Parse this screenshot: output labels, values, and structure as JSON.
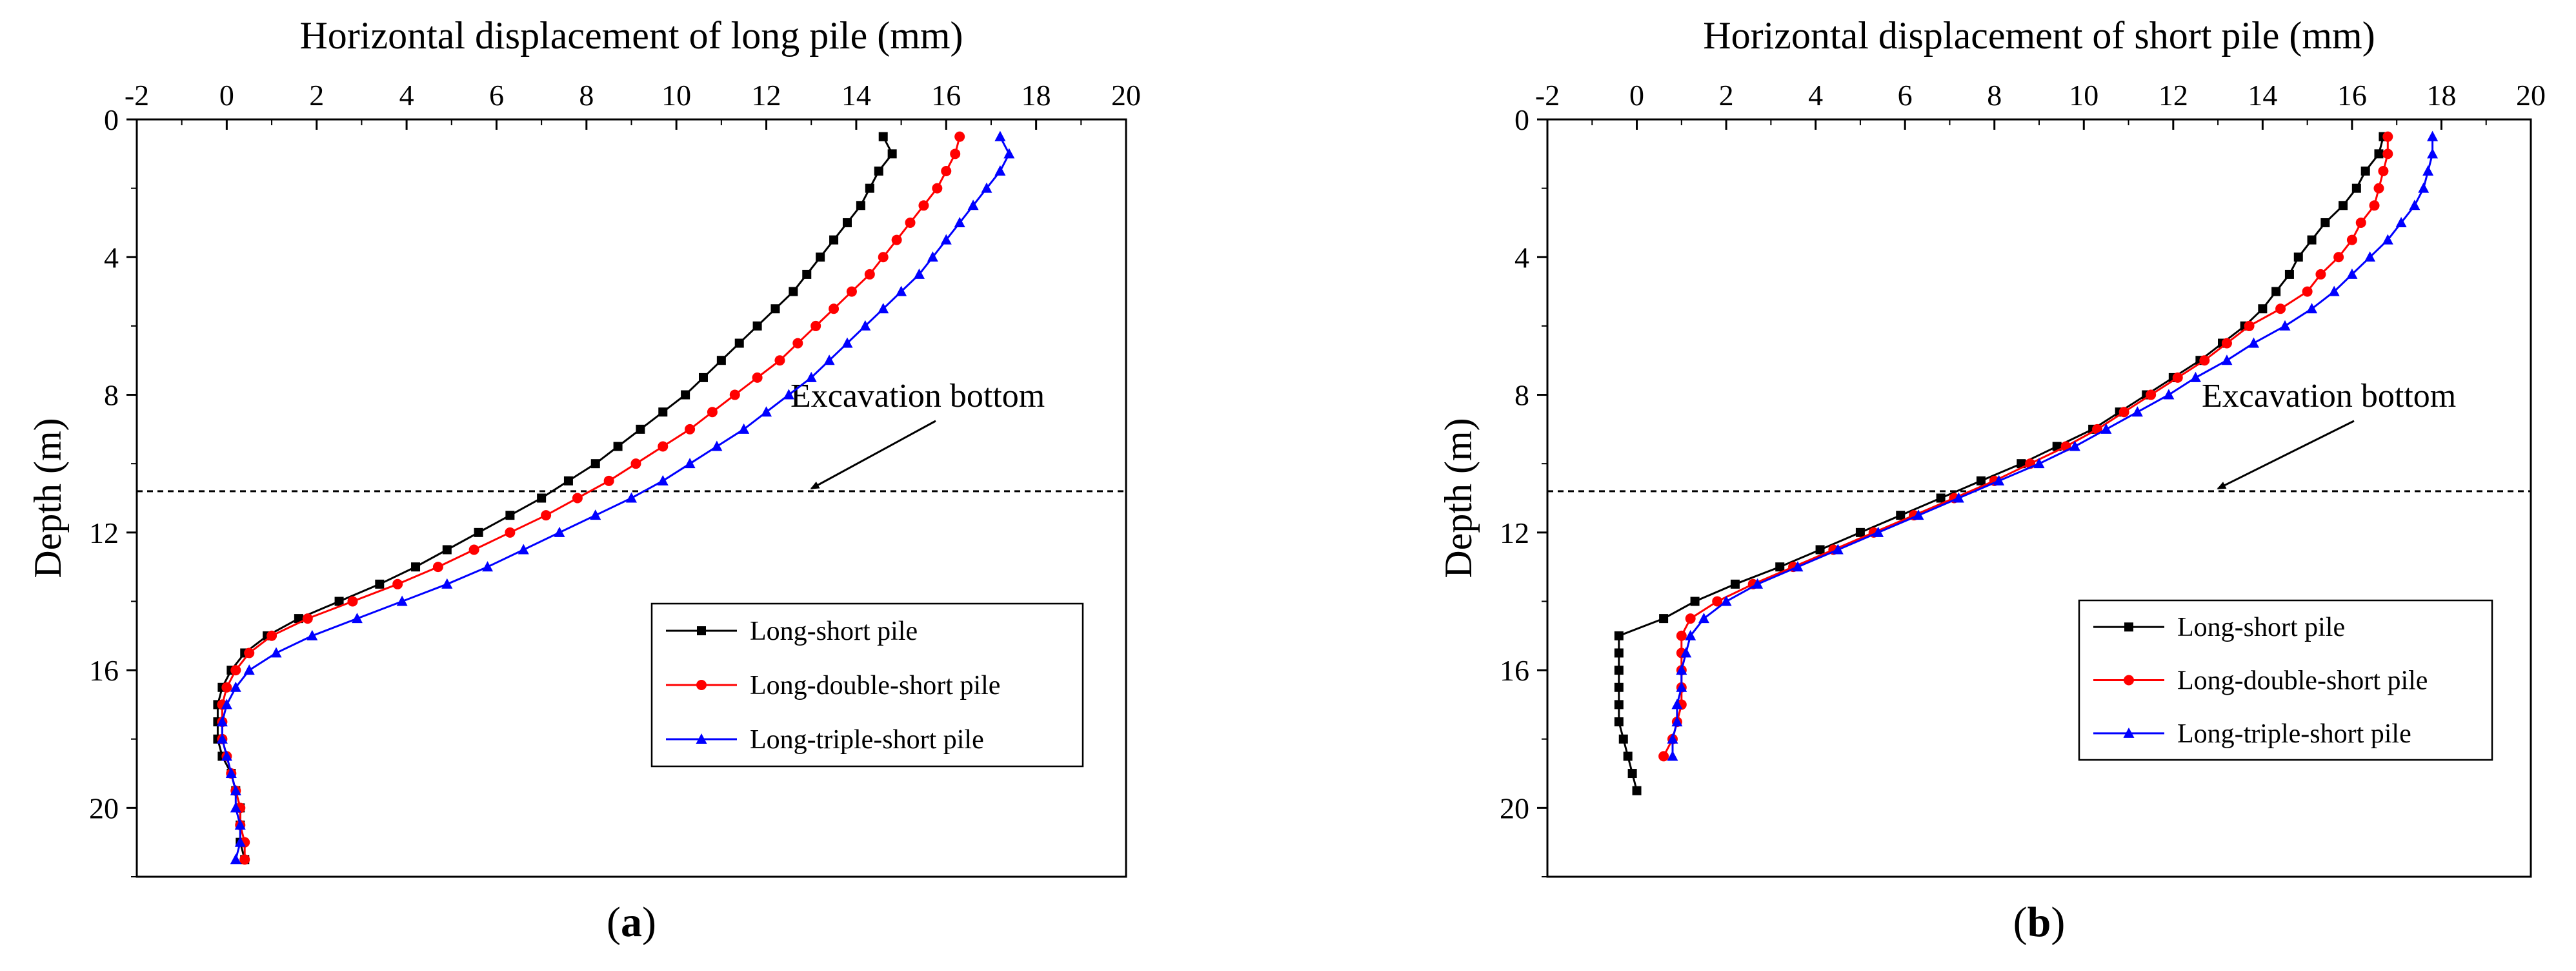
{
  "colors": {
    "Long-short pile": "#000000",
    "Long-double-short pile": "#ff0000",
    "Long-triple-short pile": "#0000ff"
  },
  "chart_data": [
    {
      "type": "line",
      "panel_label": "a",
      "xlabel": "Horizontal displacement of long pile (mm)",
      "ylabel": "Depth (m)",
      "xlim": [
        -2,
        20
      ],
      "ylim": [
        22,
        0
      ],
      "xticks": [
        -2,
        0,
        2,
        4,
        6,
        8,
        10,
        12,
        14,
        16,
        18,
        20
      ],
      "yticks": [
        0,
        4,
        8,
        12,
        16,
        20
      ],
      "legend_position": "bottom-right",
      "annotation": {
        "text": "Excavation bottom",
        "line_depth": 10.8,
        "arrow_to": [
          13,
          10.8
        ]
      },
      "series": [
        {
          "name": "Long-short pile",
          "marker": "square",
          "points": [
            [
              14.6,
              0.5
            ],
            [
              14.8,
              1
            ],
            [
              14.5,
              1.5
            ],
            [
              14.3,
              2
            ],
            [
              14.1,
              2.5
            ],
            [
              13.8,
              3
            ],
            [
              13.5,
              3.5
            ],
            [
              13.2,
              4
            ],
            [
              12.9,
              4.5
            ],
            [
              12.6,
              5
            ],
            [
              12.2,
              5.5
            ],
            [
              11.8,
              6
            ],
            [
              11.4,
              6.5
            ],
            [
              11,
              7
            ],
            [
              10.6,
              7.5
            ],
            [
              10.2,
              8
            ],
            [
              9.7,
              8.5
            ],
            [
              9.2,
              9
            ],
            [
              8.7,
              9.5
            ],
            [
              8.2,
              10
            ],
            [
              7.6,
              10.5
            ],
            [
              7,
              11
            ],
            [
              6.3,
              11.5
            ],
            [
              5.6,
              12
            ],
            [
              4.9,
              12.5
            ],
            [
              4.2,
              13
            ],
            [
              3.4,
              13.5
            ],
            [
              2.5,
              14
            ],
            [
              1.6,
              14.5
            ],
            [
              0.9,
              15
            ],
            [
              0.4,
              15.5
            ],
            [
              0.1,
              16
            ],
            [
              -0.1,
              16.5
            ],
            [
              -0.2,
              17
            ],
            [
              -0.2,
              17.5
            ],
            [
              -0.2,
              18
            ],
            [
              -0.1,
              18.5
            ],
            [
              0.1,
              19
            ],
            [
              0.2,
              19.5
            ],
            [
              0.3,
              20
            ],
            [
              0.3,
              20.5
            ],
            [
              0.3,
              21
            ],
            [
              0.4,
              21.5
            ]
          ]
        },
        {
          "name": "Long-double-short pile",
          "marker": "circle",
          "points": [
            [
              16.3,
              0.5
            ],
            [
              16.2,
              1
            ],
            [
              16,
              1.5
            ],
            [
              15.8,
              2
            ],
            [
              15.5,
              2.5
            ],
            [
              15.2,
              3
            ],
            [
              14.9,
              3.5
            ],
            [
              14.6,
              4
            ],
            [
              14.3,
              4.5
            ],
            [
              13.9,
              5
            ],
            [
              13.5,
              5.5
            ],
            [
              13.1,
              6
            ],
            [
              12.7,
              6.5
            ],
            [
              12.3,
              7
            ],
            [
              11.8,
              7.5
            ],
            [
              11.3,
              8
            ],
            [
              10.8,
              8.5
            ],
            [
              10.3,
              9
            ],
            [
              9.7,
              9.5
            ],
            [
              9.1,
              10
            ],
            [
              8.5,
              10.5
            ],
            [
              7.8,
              11
            ],
            [
              7.1,
              11.5
            ],
            [
              6.3,
              12
            ],
            [
              5.5,
              12.5
            ],
            [
              4.7,
              13
            ],
            [
              3.8,
              13.5
            ],
            [
              2.8,
              14
            ],
            [
              1.8,
              14.5
            ],
            [
              1,
              15
            ],
            [
              0.5,
              15.5
            ],
            [
              0.2,
              16
            ],
            [
              0,
              16.5
            ],
            [
              -0.1,
              17
            ],
            [
              -0.1,
              17.5
            ],
            [
              -0.1,
              18
            ],
            [
              0,
              18.5
            ],
            [
              0.1,
              19
            ],
            [
              0.2,
              19.5
            ],
            [
              0.3,
              20
            ],
            [
              0.3,
              20.5
            ],
            [
              0.4,
              21
            ],
            [
              0.4,
              21.5
            ]
          ]
        },
        {
          "name": "Long-triple-short pile",
          "marker": "triangle",
          "points": [
            [
              17.2,
              0.5
            ],
            [
              17.4,
              1
            ],
            [
              17.2,
              1.5
            ],
            [
              16.9,
              2
            ],
            [
              16.6,
              2.5
            ],
            [
              16.3,
              3
            ],
            [
              16,
              3.5
            ],
            [
              15.7,
              4
            ],
            [
              15.4,
              4.5
            ],
            [
              15,
              5
            ],
            [
              14.6,
              5.5
            ],
            [
              14.2,
              6
            ],
            [
              13.8,
              6.5
            ],
            [
              13.4,
              7
            ],
            [
              13,
              7.5
            ],
            [
              12.5,
              8
            ],
            [
              12,
              8.5
            ],
            [
              11.5,
              9
            ],
            [
              10.9,
              9.5
            ],
            [
              10.3,
              10
            ],
            [
              9.7,
              10.5
            ],
            [
              9,
              11
            ],
            [
              8.2,
              11.5
            ],
            [
              7.4,
              12
            ],
            [
              6.6,
              12.5
            ],
            [
              5.8,
              13
            ],
            [
              4.9,
              13.5
            ],
            [
              3.9,
              14
            ],
            [
              2.9,
              14.5
            ],
            [
              1.9,
              15
            ],
            [
              1.1,
              15.5
            ],
            [
              0.5,
              16
            ],
            [
              0.2,
              16.5
            ],
            [
              0,
              17
            ],
            [
              -0.1,
              17.5
            ],
            [
              -0.1,
              18
            ],
            [
              0,
              18.5
            ],
            [
              0.1,
              19
            ],
            [
              0.2,
              19.5
            ],
            [
              0.2,
              20
            ],
            [
              0.3,
              20.5
            ],
            [
              0.3,
              21
            ],
            [
              0.2,
              21.5
            ]
          ]
        }
      ]
    },
    {
      "type": "line",
      "panel_label": "b",
      "xlabel": "Horizontal displacement of short pile (mm)",
      "ylabel": "Depth (m)",
      "xlim": [
        -2,
        20
      ],
      "ylim": [
        22,
        0
      ],
      "xticks": [
        -2,
        0,
        2,
        4,
        6,
        8,
        10,
        12,
        14,
        16,
        18,
        20
      ],
      "yticks": [
        0,
        4,
        8,
        12,
        16,
        20
      ],
      "legend_position": "bottom-right",
      "annotation": {
        "text": "Excavation bottom",
        "line_depth": 10.8,
        "arrow_to": [
          13,
          10.8
        ]
      },
      "series": [
        {
          "name": "Long-short pile",
          "marker": "square",
          "points": [
            [
              16.7,
              0.5
            ],
            [
              16.6,
              1
            ],
            [
              16.3,
              1.5
            ],
            [
              16.1,
              2
            ],
            [
              15.8,
              2.5
            ],
            [
              15.4,
              3
            ],
            [
              15.1,
              3.5
            ],
            [
              14.8,
              4
            ],
            [
              14.6,
              4.5
            ],
            [
              14.3,
              5
            ],
            [
              14,
              5.5
            ],
            [
              13.6,
              6
            ],
            [
              13.1,
              6.5
            ],
            [
              12.6,
              7
            ],
            [
              12,
              7.5
            ],
            [
              11.4,
              8
            ],
            [
              10.8,
              8.5
            ],
            [
              10.2,
              9
            ],
            [
              9.4,
              9.5
            ],
            [
              8.6,
              10
            ],
            [
              7.7,
              10.5
            ],
            [
              6.8,
              11
            ],
            [
              5.9,
              11.5
            ],
            [
              5,
              12
            ],
            [
              4.1,
              12.5
            ],
            [
              3.2,
              13
            ],
            [
              2.2,
              13.5
            ],
            [
              1.3,
              14
            ],
            [
              0.6,
              14.5
            ],
            [
              -0.4,
              15
            ],
            [
              -0.4,
              15.5
            ],
            [
              -0.4,
              16
            ],
            [
              -0.4,
              16.5
            ],
            [
              -0.4,
              17
            ],
            [
              -0.4,
              17.5
            ],
            [
              -0.3,
              18
            ],
            [
              -0.2,
              18.5
            ],
            [
              -0.1,
              19
            ],
            [
              0,
              19.5
            ]
          ]
        },
        {
          "name": "Long-double-short pile",
          "marker": "circle",
          "points": [
            [
              16.8,
              0.5
            ],
            [
              16.8,
              1
            ],
            [
              16.7,
              1.5
            ],
            [
              16.6,
              2
            ],
            [
              16.5,
              2.5
            ],
            [
              16.2,
              3
            ],
            [
              16,
              3.5
            ],
            [
              15.7,
              4
            ],
            [
              15.3,
              4.5
            ],
            [
              15,
              5
            ],
            [
              14.4,
              5.5
            ],
            [
              13.7,
              6
            ],
            [
              13.2,
              6.5
            ],
            [
              12.7,
              7
            ],
            [
              12.1,
              7.5
            ],
            [
              11.5,
              8
            ],
            [
              10.9,
              8.5
            ],
            [
              10.3,
              9
            ],
            [
              9.6,
              9.5
            ],
            [
              8.8,
              10
            ],
            [
              8,
              10.5
            ],
            [
              7.1,
              11
            ],
            [
              6.2,
              11.5
            ],
            [
              5.3,
              12
            ],
            [
              4.4,
              12.5
            ],
            [
              3.5,
              13
            ],
            [
              2.6,
              13.5
            ],
            [
              1.8,
              14
            ],
            [
              1.2,
              14.5
            ],
            [
              1,
              15
            ],
            [
              1,
              15.5
            ],
            [
              1,
              16
            ],
            [
              1,
              16.5
            ],
            [
              1,
              17
            ],
            [
              0.9,
              17.5
            ],
            [
              0.8,
              18
            ],
            [
              0.6,
              18.5
            ]
          ]
        },
        {
          "name": "Long-triple-short pile",
          "marker": "triangle",
          "points": [
            [
              17.8,
              0.5
            ],
            [
              17.8,
              1
            ],
            [
              17.7,
              1.5
            ],
            [
              17.6,
              2
            ],
            [
              17.4,
              2.5
            ],
            [
              17.1,
              3
            ],
            [
              16.8,
              3.5
            ],
            [
              16.4,
              4
            ],
            [
              16,
              4.5
            ],
            [
              15.6,
              5
            ],
            [
              15.1,
              5.5
            ],
            [
              14.5,
              6
            ],
            [
              13.8,
              6.5
            ],
            [
              13.2,
              7
            ],
            [
              12.5,
              7.5
            ],
            [
              11.9,
              8
            ],
            [
              11.2,
              8.5
            ],
            [
              10.5,
              9
            ],
            [
              9.8,
              9.5
            ],
            [
              9,
              10
            ],
            [
              8.1,
              10.5
            ],
            [
              7.2,
              11
            ],
            [
              6.3,
              11.5
            ],
            [
              5.4,
              12
            ],
            [
              4.5,
              12.5
            ],
            [
              3.6,
              13
            ],
            [
              2.7,
              13.5
            ],
            [
              2,
              14
            ],
            [
              1.5,
              14.5
            ],
            [
              1.2,
              15
            ],
            [
              1.1,
              15.5
            ],
            [
              1,
              16
            ],
            [
              1,
              16.5
            ],
            [
              0.9,
              17
            ],
            [
              0.9,
              17.5
            ],
            [
              0.8,
              18
            ],
            [
              0.8,
              18.5
            ]
          ]
        }
      ]
    }
  ]
}
